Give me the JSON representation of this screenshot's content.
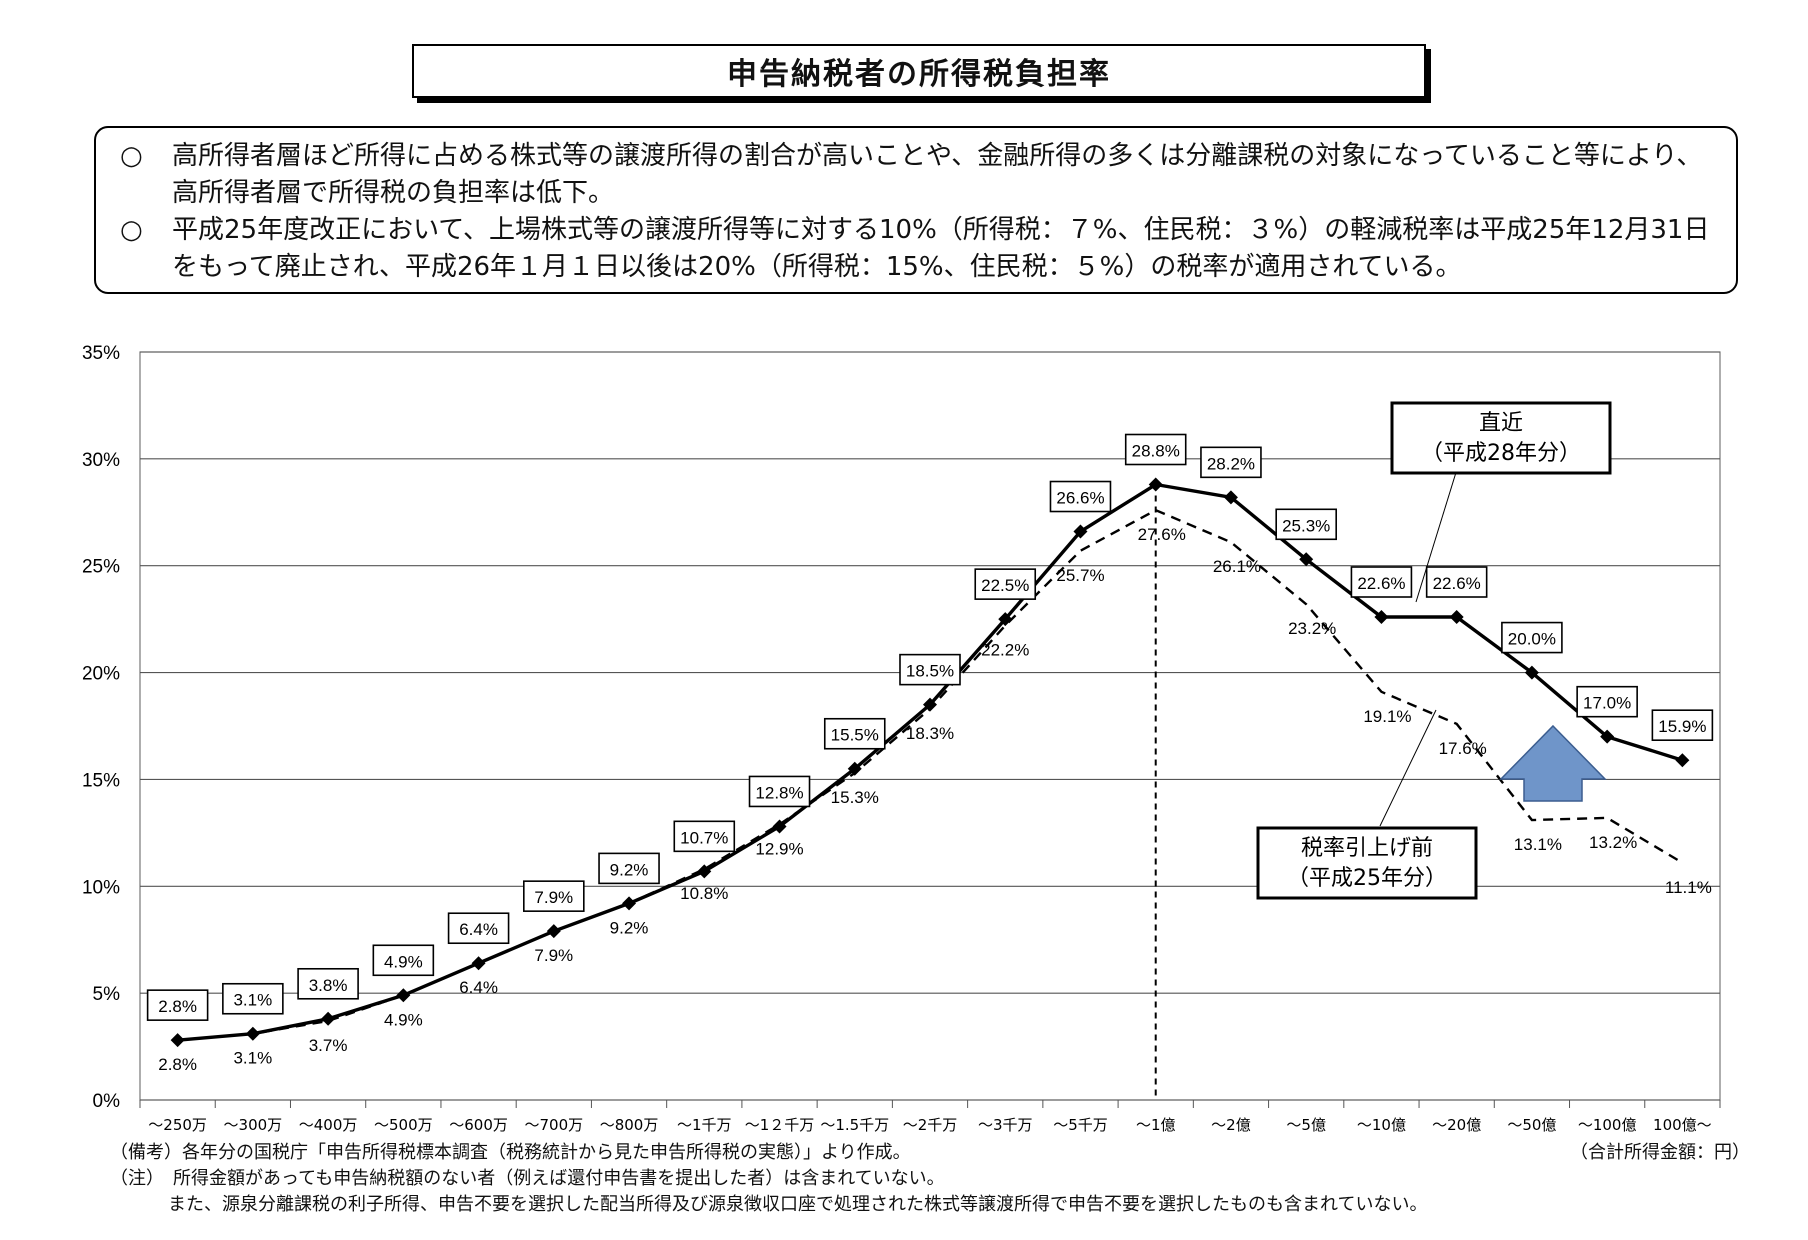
{
  "title": "申告納税者の所得税負担率",
  "notes": [
    {
      "mark": "○",
      "text": "高所得者層ほど所得に占める株式等の譲渡所得の割合が高いことや、金融所得の多くは分離課税の対象になっていること等により、高所得者層で所得税の負担率は低下。"
    },
    {
      "mark": "○",
      "text": "平成25年度改正において、上場株式等の譲渡所得等に対する10%（所得税：７%、住民税：３%）の軽減税率は平成25年12月31日をもって廃止され、平成26年１月１日以後は20%（所得税：15%、住民税：５%）の税率が適用されている。"
    }
  ],
  "chart_data": {
    "type": "line",
    "title": "",
    "xlabel": "",
    "ylabel": "",
    "ylim": [
      0,
      35
    ],
    "yticks": [
      "0%",
      "5%",
      "10%",
      "15%",
      "20%",
      "25%",
      "30%",
      "35%"
    ],
    "grid": true,
    "categories": [
      "～250万",
      "～300万",
      "～400万",
      "～500万",
      "～600万",
      "～700万",
      "～800万",
      "～1千万",
      "～1２千万",
      "～1.5千万",
      "～2千万",
      "～3千万",
      "～5千万",
      "～1億",
      "～2億",
      "～5億",
      "～10億",
      "～20億",
      "～50億",
      "～100億",
      "100億～"
    ],
    "series": [
      {
        "name": "直近（平成28年分）",
        "style": "solid",
        "marker": "diamond",
        "color": "#000000",
        "values": [
          2.8,
          3.1,
          3.8,
          4.9,
          6.4,
          7.9,
          9.2,
          10.7,
          12.8,
          15.5,
          18.5,
          22.5,
          26.6,
          28.8,
          28.2,
          25.3,
          22.6,
          22.6,
          20.0,
          17.0,
          15.9
        ],
        "labels": [
          "2.8%",
          "3.1%",
          "3.8%",
          "4.9%",
          "6.4%",
          "7.9%",
          "9.2%",
          "10.7%",
          "12.8%",
          "15.5%",
          "18.5%",
          "22.5%",
          "26.6%",
          "28.8%",
          "28.2%",
          "25.3%",
          "22.6%",
          "22.6%",
          "20.0%",
          "17.0%",
          "15.9%"
        ]
      },
      {
        "name": "税率引上げ前（平成25年分）",
        "style": "dashed",
        "marker": "none",
        "color": "#000000",
        "values": [
          2.8,
          3.1,
          3.7,
          4.9,
          6.4,
          7.9,
          9.2,
          10.8,
          12.9,
          15.3,
          18.3,
          22.2,
          25.7,
          27.6,
          26.1,
          23.2,
          19.1,
          17.6,
          13.1,
          13.2,
          11.1
        ],
        "labels": [
          "2.8%",
          "3.1%",
          "3.7%",
          "4.9%",
          "6.4%",
          "7.9%",
          "9.2%",
          "10.8%",
          "12.9%",
          "15.3%",
          "18.3%",
          "22.2%",
          "25.7%",
          "27.6%",
          "26.1%",
          "23.2%",
          "19.1%",
          "17.6%",
          "13.1%",
          "13.2%",
          "11.1%"
        ]
      }
    ],
    "annotations": {
      "recent_label_1": "直近",
      "recent_label_2": "（平成28年分）",
      "before_label_1": "税率引上げ前",
      "before_label_2": "（平成25年分）"
    },
    "vline_category": "～1億",
    "arrow_color": "#6f95c9"
  },
  "footnotes": {
    "line1": "（備考）各年分の国税庁「申告所得税標本調査（税務統計から見た申告所得税の実態）」より作成。",
    "unit": "（合計所得金額：円）",
    "line2": "（注）　所得金額があっても申告納税額のない者（例えば還付申告書を提出した者）は含まれていない。",
    "line3": "また、源泉分離課税の利子所得、申告不要を選択した配当所得及び源泉徴収口座で処理された株式等譲渡所得で申告不要を選択したものも含まれていない。"
  }
}
